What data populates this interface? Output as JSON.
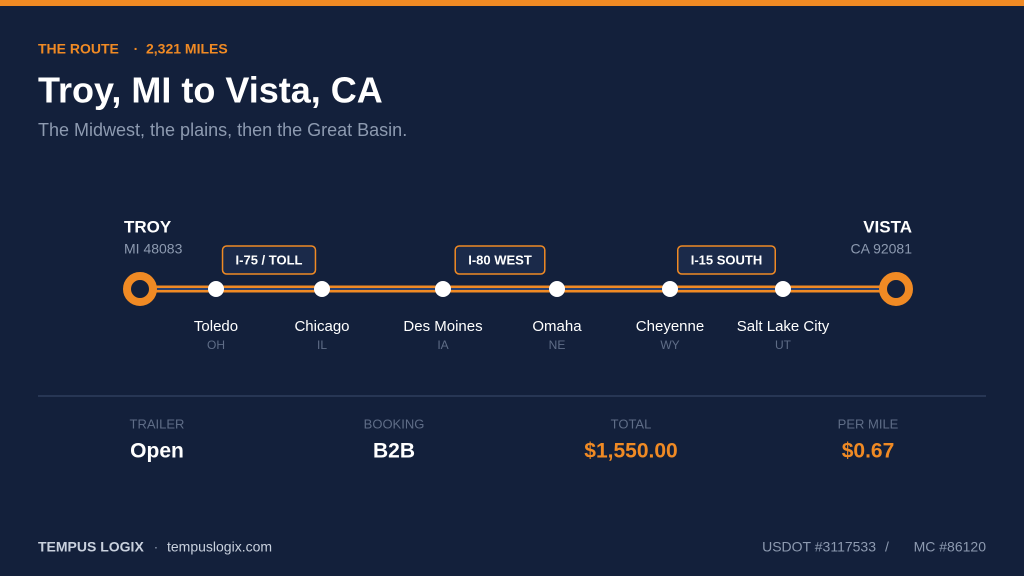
{
  "header": {
    "eyebrow": "THE ROUTE",
    "separator": "·",
    "distance": "2,321 MILES",
    "title": "Troy, MI to Vista, CA",
    "subtitle": "The Midwest, the plains, then the Great Basin."
  },
  "route": {
    "origin": {
      "name": "TROY",
      "detail": "MI 48083"
    },
    "destination": {
      "name": "VISTA",
      "detail": "CA 92081"
    },
    "highways": [
      "I-75 / TOLL",
      "I-80 WEST",
      "I-15 SOUTH"
    ],
    "stops": [
      {
        "name": "Toledo",
        "state": "OH"
      },
      {
        "name": "Chicago",
        "state": "IL"
      },
      {
        "name": "Des Moines",
        "state": "IA"
      },
      {
        "name": "Omaha",
        "state": "NE"
      },
      {
        "name": "Cheyenne",
        "state": "WY"
      },
      {
        "name": "Salt Lake City",
        "state": "UT"
      }
    ]
  },
  "stats": [
    {
      "label": "TRAILER",
      "value": "Open",
      "color": "#ffffff"
    },
    {
      "label": "BOOKING",
      "value": "B2B",
      "color": "#ffffff"
    },
    {
      "label": "TOTAL",
      "value": "$1,550.00",
      "color": "#f08a24"
    },
    {
      "label": "PER MILE",
      "value": "$0.67",
      "color": "#f08a24"
    }
  ],
  "footer": {
    "brand": "TEMPUS LOGIX",
    "separator": "·",
    "site": "tempuslogix.com",
    "usdot": "USDOT #3117533",
    "divider": "/",
    "mc": "MC #86120"
  }
}
